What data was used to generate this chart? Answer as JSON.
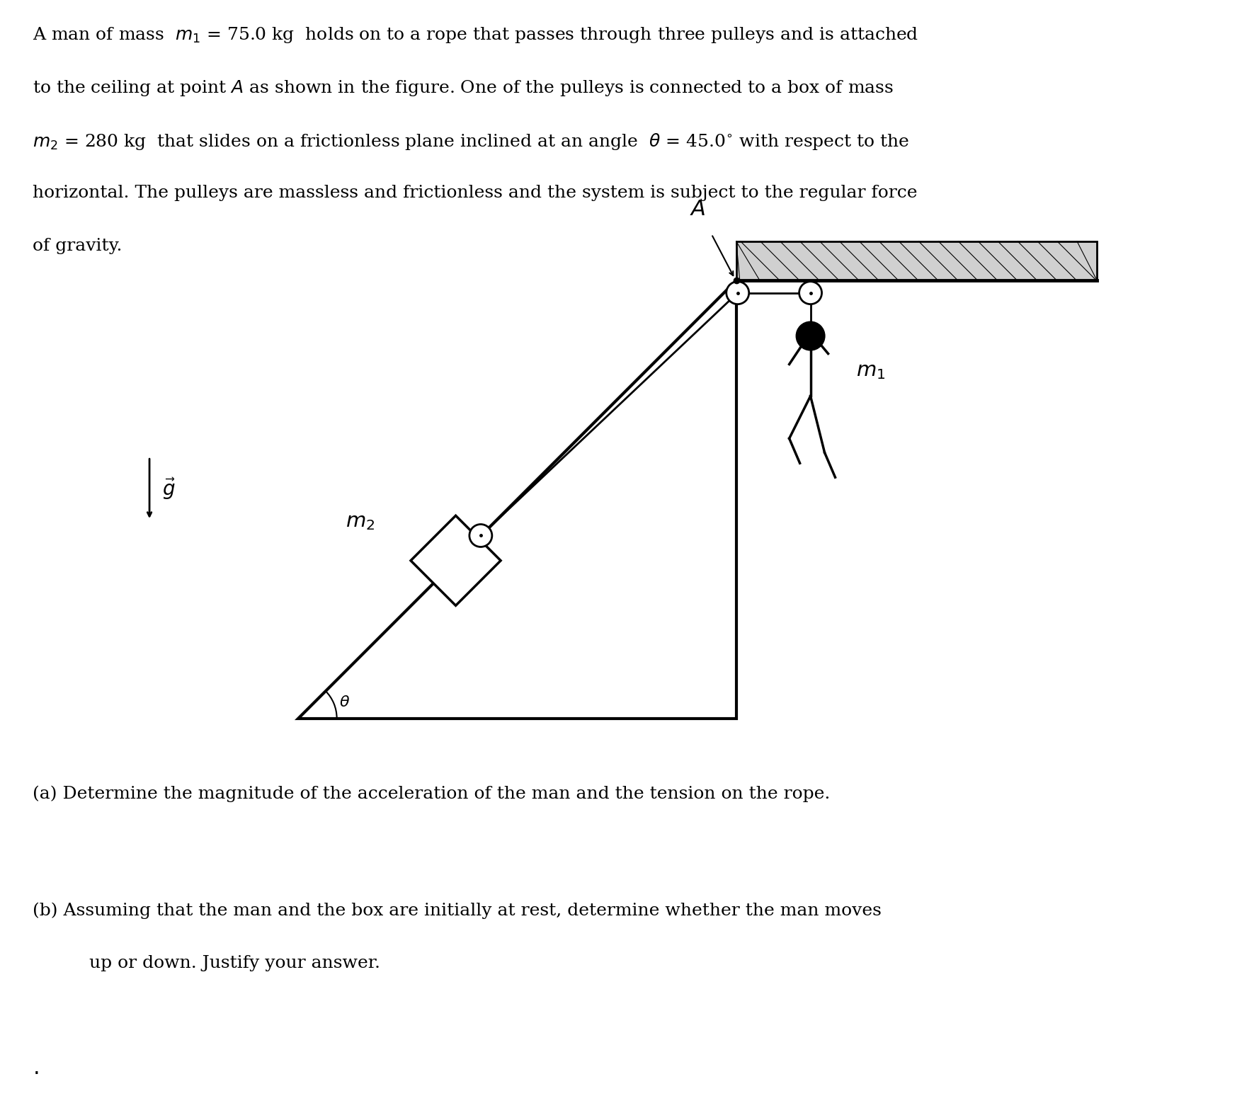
{
  "bg_color": "#ffffff",
  "fig_width": 17.54,
  "fig_height": 15.65,
  "font_size": 18,
  "label_font_size": 20,
  "line1": "A man of mass  $m_1$ = 75.0 kg  holds on to a rope that passes through three pulleys and is attached",
  "line2": "to the ceiling at point $A$ as shown in the figure. One of the pulleys is connected to a box of mass",
  "line3": "$m_2$ = 280 kg  that slides on a frictionless plane inclined at an angle  $\\theta$ = 45.0$^{\\circ}$ with respect to the",
  "line4": "horizontal. The pulleys are massless and frictionless and the system is subject to the regular force",
  "line5": "of gravity.",
  "part_a": "(a) Determine the magnitude of the acceleration of the man and the tension on the rope.",
  "part_b1": "(b) Assuming that the man and the box are initially at rest, determine whether the man moves",
  "part_b2": "     up or down. Justify your answer."
}
